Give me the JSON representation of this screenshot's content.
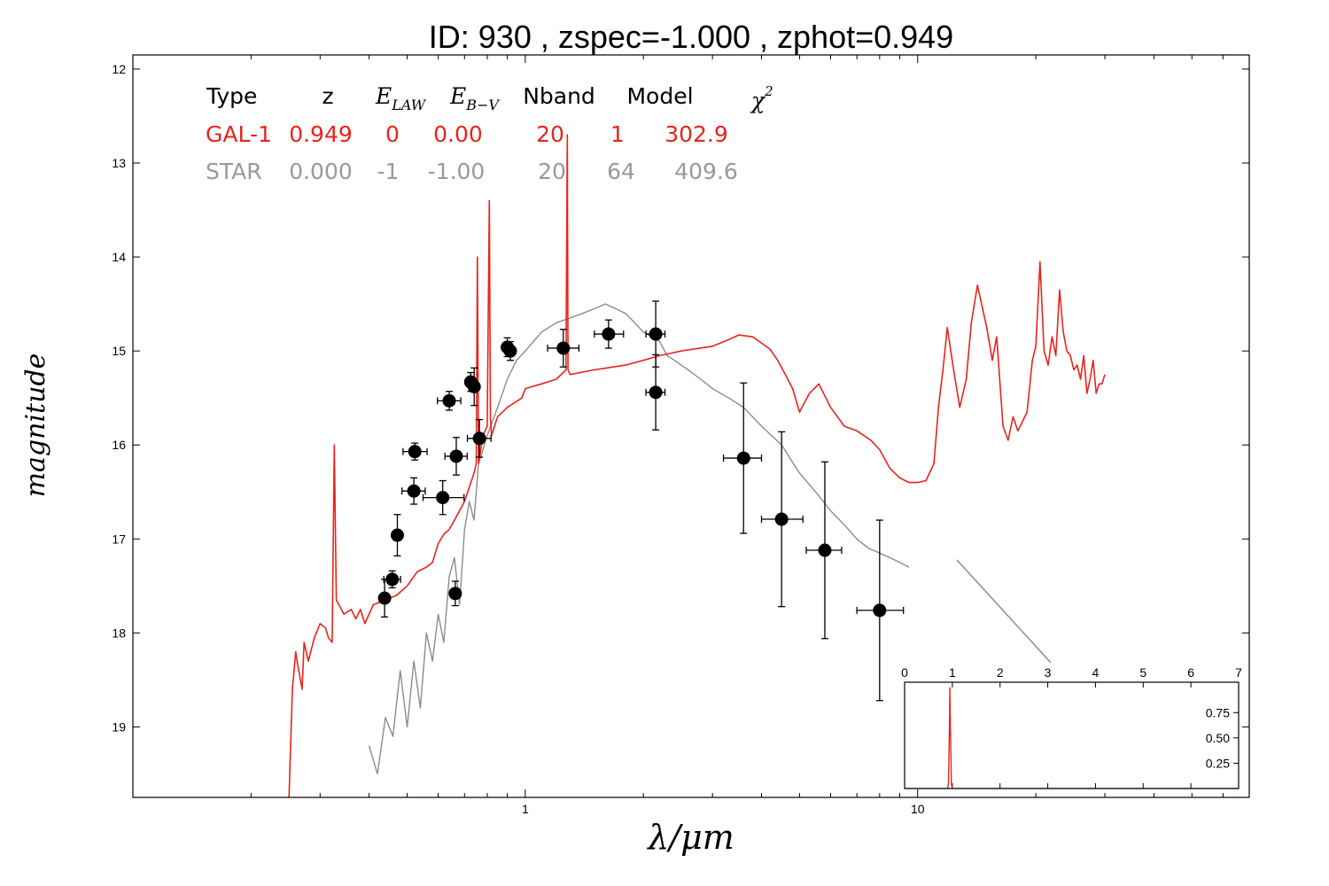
{
  "title": "ID:  930   , zspec=-1.000 , zphot=0.949",
  "xlabel": "λ/μm",
  "ylabel": "magnitude",
  "table": {
    "headers": {
      "type": "Type",
      "z": "z",
      "elaw_base": "E",
      "elaw_sub": "LAW",
      "ebv_base": "E",
      "ebv_sub": "B−V",
      "nband": "Nband",
      "model": "Model",
      "chi_base": "χ",
      "chi_sup": "2"
    },
    "rows": [
      {
        "type": "GAL-1",
        "z": "0.949",
        "elaw": "0",
        "ebv": "0.00",
        "nband": "20",
        "model": "1",
        "chi2": "302.9",
        "color": "#e8241c"
      },
      {
        "type": "STAR",
        "z": "0.000",
        "elaw": "-1",
        "ebv": "-1.00",
        "nband": "20",
        "model": "64",
        "chi2": "409.6",
        "color": "#999999"
      }
    ]
  },
  "colors": {
    "galaxy": "#e8241c",
    "star": "#8c8c8c",
    "points": "#000000"
  },
  "chart_data": [
    {
      "type": "scatter",
      "xscale": "log",
      "xlim": [
        0.1,
        70
      ],
      "ylim": [
        19.75,
        11.85
      ],
      "y_inverted": true,
      "x_ticks": [
        {
          "value": 1,
          "label": "1"
        },
        {
          "value": 10,
          "label": "10"
        }
      ],
      "y_ticks": [
        {
          "value": 12,
          "label": "12"
        },
        {
          "value": 13,
          "label": "13"
        },
        {
          "value": 14,
          "label": "14"
        },
        {
          "value": 15,
          "label": "15"
        },
        {
          "value": 16,
          "label": "16"
        },
        {
          "value": 17,
          "label": "17"
        },
        {
          "value": 18,
          "label": "18"
        },
        {
          "value": 19,
          "label": "19"
        }
      ],
      "points": [
        {
          "x": 0.438,
          "y": 17.63,
          "xerr": [
            0.426,
            0.451
          ],
          "yerr": 0.2
        },
        {
          "x": 0.458,
          "y": 17.43,
          "xerr": [
            0.436,
            0.481
          ],
          "yerr": 0.09
        },
        {
          "x": 0.472,
          "y": 16.96,
          "xerr": [
            0.459,
            0.485
          ],
          "yerr": 0.22
        },
        {
          "x": 0.52,
          "y": 16.49,
          "xerr": [
            0.485,
            0.556
          ],
          "yerr": 0.14
        },
        {
          "x": 0.523,
          "y": 16.07,
          "xerr": [
            0.488,
            0.562
          ],
          "yerr": 0.09
        },
        {
          "x": 0.616,
          "y": 16.56,
          "xerr": [
            0.549,
            0.698
          ],
          "yerr": 0.18
        },
        {
          "x": 0.64,
          "y": 15.53,
          "xerr": [
            0.597,
            0.685
          ],
          "yerr": 0.1
        },
        {
          "x": 0.663,
          "y": 17.58,
          "xerr": [
            0.647,
            0.679
          ],
          "yerr": 0.13
        },
        {
          "x": 0.667,
          "y": 16.12,
          "xerr": [
            0.624,
            0.711
          ],
          "yerr": 0.2
        },
        {
          "x": 0.726,
          "y": 15.33,
          "xerr": [
            0.713,
            0.739
          ],
          "yerr": 0.1
        },
        {
          "x": 0.741,
          "y": 15.38,
          "xerr": [
            0.727,
            0.755
          ],
          "yerr": 0.2
        },
        {
          "x": 0.764,
          "y": 15.93,
          "xerr": [
            0.712,
            0.818
          ],
          "yerr": 0.2
        },
        {
          "x": 0.9,
          "y": 14.96,
          "xerr": [
            0.883,
            0.917
          ],
          "yerr": 0.1
        },
        {
          "x": 0.916,
          "y": 15.0,
          "xerr": [
            0.899,
            0.933
          ],
          "yerr": 0.1
        },
        {
          "x": 1.25,
          "y": 14.97,
          "xerr": [
            1.14,
            1.37
          ],
          "yerr": 0.2
        },
        {
          "x": 1.63,
          "y": 14.82,
          "xerr": [
            1.5,
            1.78
          ],
          "yerr": 0.15
        },
        {
          "x": 2.15,
          "y": 14.82,
          "xerr": [
            2.03,
            2.27
          ],
          "yerr": 0.35
        },
        {
          "x": 2.15,
          "y": 15.44,
          "xerr": [
            2.03,
            2.27
          ],
          "yerr": 0.4
        },
        {
          "x": 3.6,
          "y": 16.14,
          "xerr": [
            3.2,
            4.0
          ],
          "yerr": 0.8
        },
        {
          "x": 4.5,
          "y": 16.79,
          "xerr": [
            4.0,
            5.1
          ],
          "yerr": 0.93
        },
        {
          "x": 5.8,
          "y": 17.12,
          "xerr": [
            5.2,
            6.4
          ],
          "yerr": 0.94
        },
        {
          "x": 8.0,
          "y": 17.76,
          "xerr": [
            7.0,
            9.2
          ],
          "yerr": 0.96
        }
      ],
      "series": [
        {
          "name": "GAL-1",
          "color": "#e8241c",
          "x": [
            0.25,
            0.255,
            0.26,
            0.262,
            0.27,
            0.273,
            0.28,
            0.29,
            0.3,
            0.31,
            0.315,
            0.322,
            0.326,
            0.33,
            0.335,
            0.345,
            0.36,
            0.37,
            0.38,
            0.39,
            0.41,
            0.44,
            0.47,
            0.5,
            0.53,
            0.56,
            0.58,
            0.6,
            0.62,
            0.64,
            0.66,
            0.68,
            0.7,
            0.72,
            0.74,
            0.75,
            0.755,
            0.76,
            0.78,
            0.8,
            0.81,
            0.815,
            0.82,
            0.85,
            0.9,
            0.98,
            1.0,
            1.1,
            1.2,
            1.27,
            1.28,
            1.285,
            1.3,
            1.5,
            1.8,
            2.0,
            2.2,
            2.5,
            3.0,
            3.3,
            3.5,
            3.8,
            4.2,
            4.4,
            4.6,
            4.8,
            5.0,
            5.3,
            5.6,
            6.0,
            6.5,
            7.0,
            7.6,
            8.0,
            8.5,
            9.0,
            9.5,
            10.0,
            10.5,
            11.0,
            11.3,
            11.6,
            11.9,
            12.3,
            12.8,
            13.3,
            13.7,
            14.2,
            15.0,
            15.5,
            15.9,
            16.5,
            17.0,
            17.5,
            18.0,
            19.0,
            19.6,
            20.0,
            20.5,
            21.0,
            21.5,
            22.0,
            22.5,
            23.0,
            23.5,
            24.0,
            24.5,
            25.0,
            25.5,
            26.0,
            26.5,
            27.0,
            27.5,
            28.0,
            28.5,
            29.0,
            29.5,
            30.0
          ],
          "y": [
            19.75,
            18.6,
            18.2,
            18.3,
            18.6,
            18.1,
            18.3,
            18.05,
            17.9,
            17.95,
            18.05,
            18.1,
            16.0,
            17.65,
            17.7,
            17.8,
            17.75,
            17.85,
            17.75,
            17.9,
            17.7,
            17.65,
            17.6,
            17.5,
            17.35,
            17.3,
            17.25,
            17.05,
            16.95,
            16.9,
            16.8,
            16.7,
            16.6,
            16.45,
            16.3,
            16.2,
            14.0,
            16.2,
            15.9,
            15.8,
            13.4,
            15.7,
            15.9,
            15.7,
            15.6,
            15.5,
            15.4,
            15.35,
            15.3,
            15.2,
            12.7,
            15.2,
            15.25,
            15.2,
            15.15,
            15.1,
            15.05,
            15.0,
            14.95,
            14.88,
            14.83,
            14.85,
            14.98,
            15.1,
            15.25,
            15.4,
            15.65,
            15.45,
            15.35,
            15.6,
            15.8,
            15.85,
            15.95,
            16.05,
            16.25,
            16.35,
            16.4,
            16.4,
            16.38,
            16.2,
            15.6,
            15.2,
            14.75,
            15.15,
            15.6,
            15.3,
            14.7,
            14.3,
            14.75,
            15.1,
            14.85,
            15.8,
            15.95,
            15.7,
            15.85,
            15.65,
            15.1,
            14.95,
            14.05,
            15.0,
            15.15,
            14.85,
            15.05,
            14.35,
            14.8,
            15.0,
            15.05,
            15.2,
            15.15,
            15.3,
            15.05,
            15.45,
            15.3,
            15.1,
            15.45,
            15.35,
            15.35,
            15.25
          ]
        },
        {
          "name": "STAR",
          "color": "#8c8c8c",
          "x": [
            0.4,
            0.42,
            0.44,
            0.46,
            0.48,
            0.5,
            0.52,
            0.54,
            0.56,
            0.58,
            0.6,
            0.62,
            0.64,
            0.66,
            0.68,
            0.7,
            0.72,
            0.74,
            0.76,
            0.8,
            0.85,
            0.9,
            0.95,
            1.0,
            1.1,
            1.2,
            1.3,
            1.4,
            1.5,
            1.6,
            1.7,
            1.8,
            1.9,
            2.0,
            2.1,
            2.2,
            2.3,
            2.4,
            2.6,
            2.8,
            3.0,
            3.3,
            3.6,
            4.0,
            4.5,
            5.0,
            5.5,
            6.0,
            6.5,
            7.0,
            7.5,
            8.0,
            8.5,
            9.0,
            9.5
          ],
          "y": [
            19.2,
            19.5,
            18.9,
            19.1,
            18.4,
            19.0,
            18.3,
            18.8,
            18.0,
            18.3,
            17.8,
            18.1,
            17.4,
            17.2,
            17.7,
            16.9,
            16.6,
            16.8,
            16.2,
            15.9,
            15.6,
            15.3,
            15.1,
            15.0,
            14.8,
            14.7,
            14.65,
            14.6,
            14.55,
            14.5,
            14.55,
            14.6,
            14.7,
            14.8,
            14.85,
            14.9,
            15.05,
            15.1,
            15.2,
            15.3,
            15.4,
            15.5,
            15.6,
            15.8,
            16.0,
            16.3,
            16.5,
            16.7,
            16.85,
            17.0,
            17.1,
            17.15,
            17.2,
            17.25,
            17.3
          ]
        }
      ]
    },
    {
      "type": "line",
      "xlim": [
        0,
        7
      ],
      "ylim": [
        0,
        1.05
      ],
      "x_ticks": [
        {
          "value": 0,
          "label": "0"
        },
        {
          "value": 1,
          "label": "1"
        },
        {
          "value": 2,
          "label": "2"
        },
        {
          "value": 3,
          "label": "3"
        },
        {
          "value": 4,
          "label": "4"
        },
        {
          "value": 5,
          "label": "5"
        },
        {
          "value": 6,
          "label": "6"
        },
        {
          "value": 7,
          "label": "7"
        }
      ],
      "y_ticks": [
        {
          "value": 0.25,
          "label": "0.25"
        },
        {
          "value": 0.5,
          "label": "0.50"
        },
        {
          "value": 0.75,
          "label": "0.75"
        }
      ],
      "series": [
        {
          "name": "",
          "color": "#e8241c",
          "x": [
            0,
            0.9,
            0.92,
            0.94,
            0.949,
            0.96,
            0.98,
            1.0,
            7.0
          ],
          "y": [
            0,
            0,
            0.05,
            0.6,
            1.0,
            0.6,
            0.05,
            0,
            0
          ]
        }
      ]
    }
  ]
}
